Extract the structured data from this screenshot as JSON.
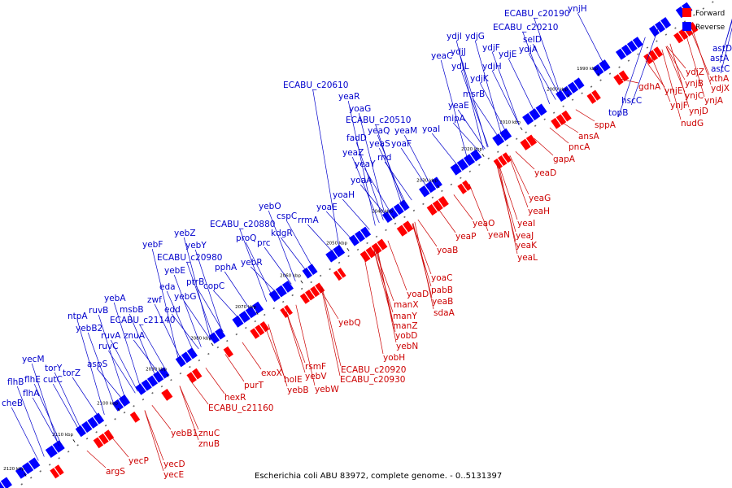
{
  "caption": "Escherichia coli ABU 83972, complete genome. - 0..5131397",
  "legend": {
    "forward": {
      "label": "Forward",
      "color": "#ff0000"
    },
    "reverse": {
      "label": "Reverse",
      "color": "#0000ff"
    }
  },
  "ticks": [
    "1990 kbp",
    "2000 kbp",
    "2010 kbp",
    "2020 kbp",
    "2030 kbp",
    "2040 kbp",
    "2050 kbp",
    "2060 kbp",
    "2070 kbp",
    "2080 kbp",
    "2090 kbp",
    "2100 kbp",
    "2110 kbp",
    "2120 kbp"
  ],
  "reverse_genes": [
    "ynjH",
    "ECABU_c20190",
    "ydjI",
    "ydjG",
    "ECABU_c20210",
    "selD",
    "ydjJ",
    "ydjF",
    "ydjE",
    "yeaC",
    "ydjL",
    "ydjA",
    "ydjH",
    "ydjK",
    "ECABU_c20610",
    "msrB",
    "yeaR",
    "yeaE",
    "yoaG",
    "mipA",
    "ECABU_c20510",
    "fadD",
    "yeaQ",
    "yeaM",
    "yeaS",
    "yoaF",
    "yoaI",
    "yeaZ",
    "rnd",
    "yeaY",
    "yoaA",
    "yoaH",
    "yebO",
    "yoaE",
    "cspC",
    "rrmA",
    "ECABU_c20880",
    "kdgR",
    "proQ",
    "prc",
    "yebZ",
    "yebY",
    "yebF",
    "ECABU_c20980",
    "yebR",
    "pphA",
    "yebE",
    "ptrB",
    "copC",
    "eda",
    "yebG",
    "yebA",
    "zwf",
    "edd",
    "ruvB",
    "msbB",
    "ntpA",
    "ECABU_c21140",
    "yebB2",
    "ruvA",
    "znuA",
    "ruvC",
    "aspS",
    "yecM",
    "torY",
    "torZ",
    "flhB",
    "flhE",
    "cutC",
    "flhA",
    "cheB",
    "astD",
    "astA",
    "astC",
    "hscC",
    "topB"
  ],
  "forward_genes": [
    "xthA",
    "ydjZ",
    "ynjB",
    "ydjX",
    "gdhA",
    "ynjE",
    "ynjC",
    "ynjA",
    "ynjD",
    "ynjF",
    "nudG",
    "ansA",
    "sppA",
    "pncA",
    "gapA",
    "yeaD",
    "yeaG",
    "yeaH",
    "yeaI",
    "yeaJ",
    "yeaK",
    "yeaL",
    "yeaO",
    "yeaN",
    "yeaP",
    "yoaB",
    "yoaC",
    "pabB",
    "yoaD",
    "yeaB",
    "manX",
    "sdaA",
    "manY",
    "manZ",
    "yobD",
    "yebN",
    "yobH",
    "yebQ",
    "ECABU_c20920",
    "ECABU_c20930",
    "rsmF",
    "yebV",
    "yebW",
    "holE",
    "yebB",
    "exoX",
    "purT",
    "hexR",
    "ECABU_c21160",
    "yebB1",
    "znuC",
    "znuB",
    "yecD",
    "yecE",
    "yecP",
    "argS"
  ]
}
